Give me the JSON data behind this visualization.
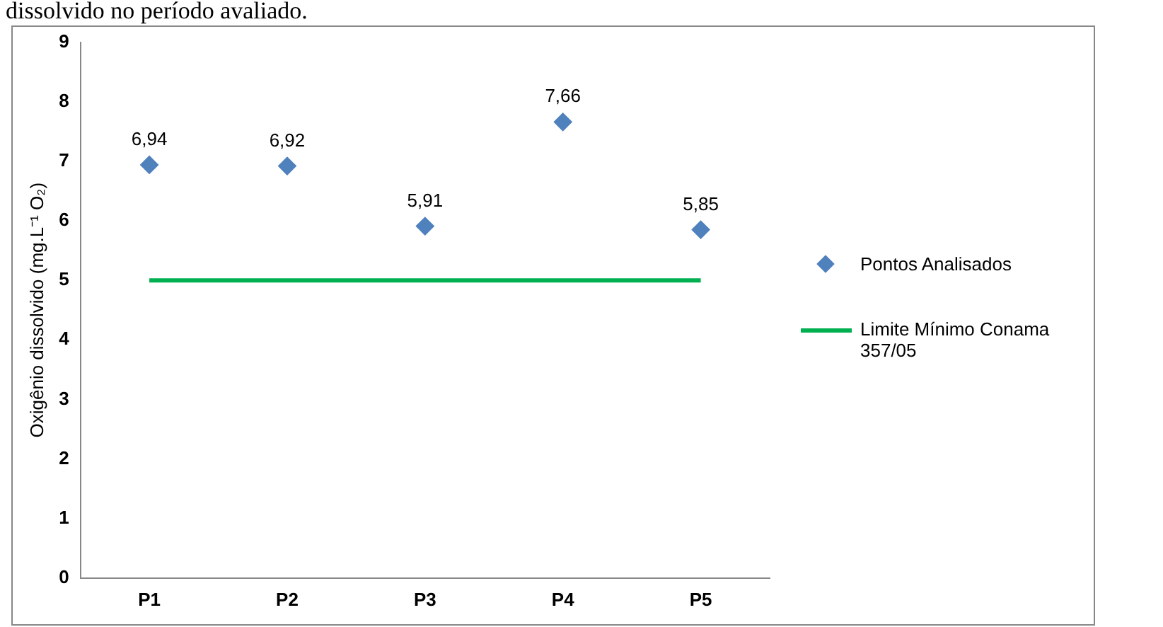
{
  "chart_data": {
    "type": "scatter",
    "ylabel": "Oxigênio dissolvido (mg.L⁻¹ O₂)",
    "categories": [
      "P1",
      "P2",
      "P3",
      "P4",
      "P5"
    ],
    "series": [
      {
        "name": "Pontos Analisados",
        "color": "#4f81bd",
        "marker": "diamond",
        "values": [
          6.94,
          6.92,
          5.91,
          7.66,
          5.85
        ],
        "value_labels": [
          "6,94",
          "6,92",
          "5,91",
          "7,66",
          "5,85"
        ]
      },
      {
        "name": "Limite Mínimo Conama 357/05",
        "type": "line",
        "color": "#00b050",
        "marker": "none",
        "values": [
          5,
          5,
          5,
          5,
          5
        ]
      }
    ],
    "ylim": [
      0,
      9
    ],
    "yticks": [
      0,
      1,
      2,
      3,
      4,
      5,
      6,
      7,
      8,
      9
    ],
    "grid": false,
    "legend": "right",
    "annotations": [
      "dissolvido no período avaliado."
    ]
  }
}
